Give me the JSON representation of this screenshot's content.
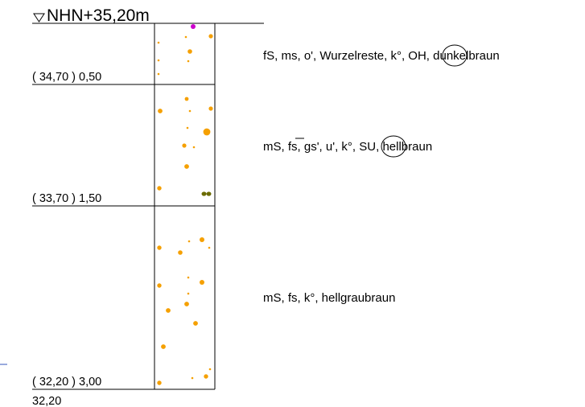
{
  "header": {
    "elevation_label": "NHN+35,20m"
  },
  "layers": [
    {
      "depth_label": "( 34,70 ) 0,50",
      "description": {
        "pre": "fS, ms, o', Wurzelreste, k°, ",
        "circled": "OH",
        "post": ", dunkelbraun"
      }
    },
    {
      "depth_label": "( 33,70 ) 1,50",
      "description": {
        "pre1": "mS, ",
        "over": "fs",
        "pre2": ", gs', u', k°, ",
        "circled": "SU",
        "post": ", hellbraun"
      }
    },
    {
      "depth_label": "( 32,20 ) 3,00",
      "description": {
        "pre": "mS, fs, k°, hellgraubraun"
      }
    }
  ],
  "footer": {
    "bottom_label": "32,20"
  },
  "colors": {
    "line": "#000000",
    "sand_dot": "#f5a000",
    "topsoil_marker": "#cc00cc",
    "gravel_marker": "#6b6b00",
    "stray_mark": "#3355bb"
  },
  "icons": {
    "elevation_marker": "triangle-down-icon",
    "sand_pattern": "dot-pattern-icon",
    "gravel_pattern": "gravel-icon"
  }
}
